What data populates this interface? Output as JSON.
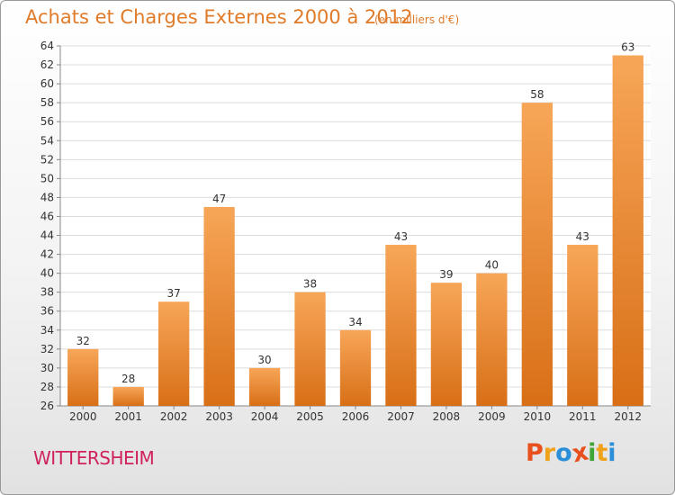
{
  "title": "Achats et Charges Externes 2000 à 2012",
  "unit_note": "(en milliers d'€)",
  "town": "WITTERSHEIM",
  "logo": {
    "text": "Proxiti",
    "colors": [
      "#e8501e",
      "#f0a21a",
      "#2a8fd8",
      "#e8501e",
      "#3fa535",
      "#f0a21a",
      "#2a8fd8"
    ]
  },
  "colors": {
    "bar_light": "#f7a658",
    "bar_dark": "#d86f17",
    "title": "#e07b2a",
    "town": "#d0215f"
  },
  "chart_data": {
    "type": "bar",
    "categories": [
      "2000",
      "2001",
      "2002",
      "2003",
      "2004",
      "2005",
      "2006",
      "2007",
      "2008",
      "2009",
      "2010",
      "2011",
      "2012"
    ],
    "values": [
      32,
      28,
      37,
      47,
      30,
      38,
      34,
      43,
      39,
      40,
      58,
      43,
      63
    ],
    "ylim": [
      26,
      64
    ],
    "yticks": [
      26,
      28,
      30,
      32,
      34,
      36,
      38,
      40,
      42,
      44,
      46,
      48,
      50,
      52,
      54,
      56,
      58,
      60,
      62,
      64
    ],
    "grid": "horizontal",
    "data_labels": true
  }
}
